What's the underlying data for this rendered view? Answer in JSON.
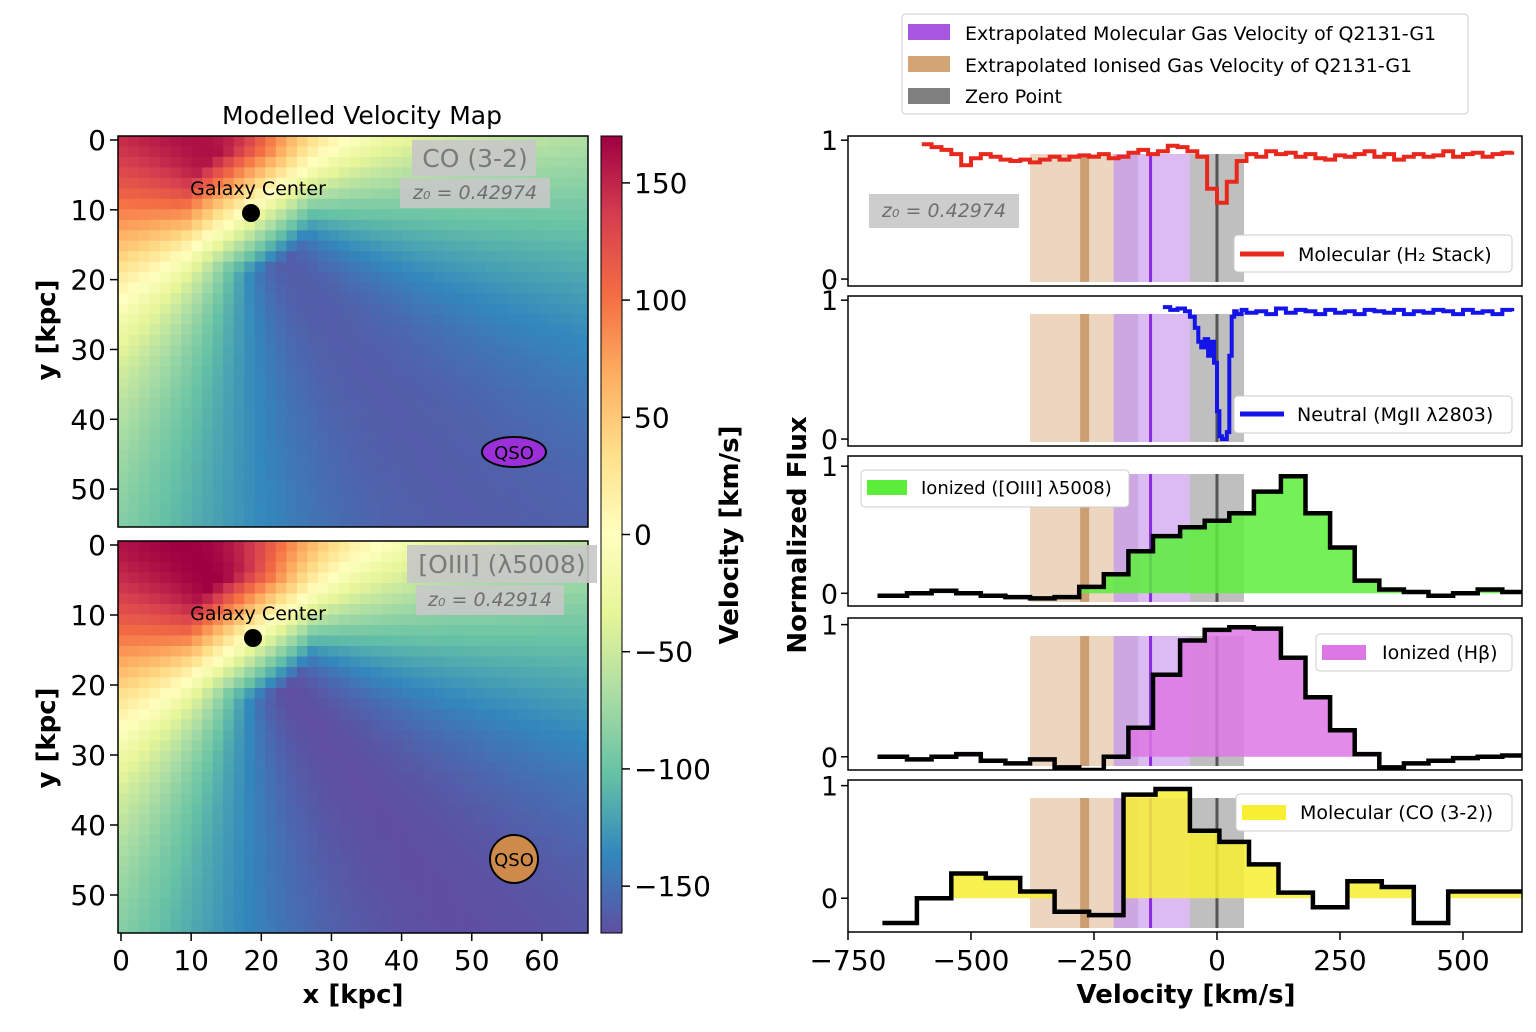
{
  "figure": {
    "left_title": "Modelled Velocity Map",
    "colorbar_label": "Velocity [km/s]",
    "colorbar_ticks": [
      "150",
      "100",
      "50",
      "0",
      "−50",
      "−100",
      "−150"
    ],
    "colorbar_values": [
      150,
      100,
      50,
      0,
      -50,
      -100,
      -150
    ],
    "colorbar_range": [
      -170,
      170
    ],
    "colormap": [
      "#5e4fa2",
      "#3288bd",
      "#66c2a5",
      "#abdda4",
      "#e6f598",
      "#ffffbf",
      "#fee08b",
      "#fdae61",
      "#f46d43",
      "#d53e4f",
      "#9e0142"
    ],
    "map_xlabel": "x [kpc]",
    "map_ylabel": "y [kpc]",
    "map_xticks": [
      "0",
      "10",
      "20",
      "30",
      "40",
      "50",
      "60"
    ],
    "map_yticks": [
      "0",
      "10",
      "20",
      "30",
      "40",
      "50"
    ],
    "map_xrange": [
      0,
      67
    ],
    "map_yrange": [
      0,
      56
    ],
    "right_xlabel": "Velocity [km/s]",
    "right_ylabel": "Normalized Flux",
    "right_xticks": [
      "−750",
      "−500",
      "−250",
      "0",
      "250",
      "500"
    ],
    "right_ytick_one": "1",
    "right_ytick_zero": "0"
  },
  "maps": [
    {
      "label": "CO (3-2)",
      "z0": "z₀ = 0.42974",
      "center_label": "Galaxy Center",
      "qso_label": "QSO",
      "qso_color": "#9b30d9"
    },
    {
      "label": "[OIII] (λ5008)",
      "z0": "z₀ = 0.42914",
      "center_label": "Galaxy Center",
      "qso_label": "QSO",
      "qso_color": "#cd8a4a"
    }
  ],
  "legend": {
    "items": [
      {
        "label": "Extrapolated Molecular Gas Velocity of Q2131-G1",
        "color": "#a855e0"
      },
      {
        "label": "Extrapolated Ionised Gas Velocity of Q2131-G1",
        "color": "#d4a574"
      },
      {
        "label": "Zero Point",
        "color": "#808080"
      }
    ]
  },
  "spectra": [
    {
      "label": "Molecular (H₂ Stack)",
      "line_color": "#e8281c",
      "fill_color": "",
      "z0": "z₀ = 0.42974"
    },
    {
      "label": "Neutral (MgII λ2803)",
      "line_color": "#1414e8",
      "fill_color": ""
    },
    {
      "label": "Ionized ([OIII] λ5008)",
      "line_color": "#000000",
      "fill_color": "#5aee3a"
    },
    {
      "label": "Ionized (Hβ)",
      "line_color": "#000000",
      "fill_color": "#dd77e4"
    },
    {
      "label": "Molecular (CO (3-2))",
      "line_color": "#000000",
      "fill_color": "#f7f032"
    }
  ],
  "chart_data": [
    {
      "type": "heatmap",
      "title": "Modelled Velocity Map",
      "panel": "CO (3-2)",
      "xlabel": "x [kpc]",
      "ylabel": "y [kpc]",
      "xlim": [
        0,
        67
      ],
      "ylim": [
        56,
        0
      ],
      "galaxy_center": [
        18.5,
        10.5
      ],
      "qso_position": [
        56,
        45
      ],
      "velocity_range": [
        -170,
        170
      ]
    },
    {
      "type": "heatmap",
      "panel": "[OIII] (λ5008)",
      "xlabel": "x [kpc]",
      "ylabel": "y [kpc]",
      "xlim": [
        0,
        67
      ],
      "ylim": [
        56,
        0
      ],
      "galaxy_center": [
        19,
        13.5
      ],
      "qso_position": [
        56,
        45
      ],
      "velocity_range": [
        -170,
        170
      ]
    },
    {
      "type": "line",
      "xlabel": "Velocity [km/s]",
      "ylabel": "Normalized Flux",
      "xlim": [
        -750,
        620
      ],
      "shaded_regions": {
        "ionised_gas": [
          -380,
          -210
        ],
        "ionised_line": -270,
        "molecular_gas": [
          -210,
          -55
        ],
        "molecular_line": -135,
        "zero_point_band": [
          -55,
          55
        ],
        "zero_line": 0
      },
      "series": [
        {
          "name": "Molecular (H₂ Stack)",
          "ylim": [
            -0.05,
            1.03
          ],
          "x": [
            -600,
            -580,
            -560,
            -540,
            -520,
            -500,
            -480,
            -460,
            -440,
            -420,
            -400,
            -380,
            -360,
            -340,
            -320,
            -300,
            -280,
            -260,
            -240,
            -220,
            -200,
            -180,
            -160,
            -140,
            -120,
            -100,
            -80,
            -60,
            -40,
            -20,
            0,
            20,
            40,
            60,
            80,
            100,
            120,
            140,
            160,
            180,
            200,
            220,
            240,
            260,
            280,
            300,
            320,
            340,
            360,
            380,
            400,
            420,
            440,
            460,
            480,
            500,
            520,
            540,
            560,
            580,
            600
          ],
          "y": [
            0.97,
            0.95,
            0.93,
            0.9,
            0.82,
            0.87,
            0.9,
            0.88,
            0.86,
            0.85,
            0.86,
            0.84,
            0.86,
            0.88,
            0.86,
            0.88,
            0.89,
            0.88,
            0.9,
            0.87,
            0.88,
            0.91,
            0.93,
            0.9,
            0.92,
            0.96,
            0.95,
            0.92,
            0.88,
            0.65,
            0.55,
            0.7,
            0.85,
            0.9,
            0.88,
            0.92,
            0.9,
            0.91,
            0.88,
            0.9,
            0.87,
            0.86,
            0.89,
            0.88,
            0.9,
            0.92,
            0.88,
            0.9,
            0.86,
            0.88,
            0.9,
            0.88,
            0.89,
            0.92,
            0.88,
            0.9,
            0.91,
            0.88,
            0.9,
            0.91,
            0.92
          ]
        },
        {
          "name": "Neutral (MgII λ2803)",
          "ylim": [
            -0.05,
            1.03
          ],
          "x": [
            -110,
            -95,
            -80,
            -65,
            -55,
            -45,
            -38,
            -32,
            -25,
            -18,
            -12,
            -6,
            0,
            5,
            10,
            15,
            20,
            25,
            30,
            35,
            40,
            50,
            60,
            80,
            100,
            120,
            140,
            160,
            180,
            200,
            220,
            240,
            260,
            280,
            300,
            320,
            340,
            360,
            380,
            400,
            420,
            440,
            460,
            480,
            500,
            520,
            540,
            560,
            580,
            600
          ],
          "y": [
            0.95,
            0.93,
            0.94,
            0.92,
            0.88,
            0.8,
            0.7,
            0.66,
            0.72,
            0.6,
            0.7,
            0.55,
            0.2,
            0.02,
            0.0,
            0.0,
            0.05,
            0.6,
            0.88,
            0.92,
            0.9,
            0.93,
            0.91,
            0.92,
            0.9,
            0.94,
            0.91,
            0.93,
            0.92,
            0.9,
            0.93,
            0.91,
            0.92,
            0.9,
            0.93,
            0.92,
            0.91,
            0.93,
            0.9,
            0.92,
            0.91,
            0.93,
            0.92,
            0.9,
            0.93,
            0.91,
            0.92,
            0.9,
            0.93,
            0.92
          ]
        },
        {
          "name": "Ionized ([OIII] λ5008)",
          "ylim": [
            -0.1,
            1.08
          ],
          "steps": true,
          "x": [
            -690,
            -630,
            -580,
            -530,
            -480,
            -430,
            -380,
            -330,
            -280,
            -230,
            -180,
            -130,
            -75,
            -25,
            25,
            75,
            130,
            180,
            230,
            280,
            330,
            380,
            430,
            480,
            530,
            580
          ],
          "y": [
            -0.02,
            0.0,
            0.02,
            0.0,
            -0.02,
            -0.03,
            -0.04,
            -0.03,
            0.05,
            0.15,
            0.33,
            0.45,
            0.52,
            0.57,
            0.63,
            0.8,
            0.92,
            0.63,
            0.36,
            0.1,
            0.03,
            0.01,
            -0.02,
            0.0,
            0.03,
            0.01
          ]
        },
        {
          "name": "Ionized (Hβ)",
          "ylim": [
            -0.1,
            1.05
          ],
          "steps": true,
          "x": [
            -690,
            -630,
            -580,
            -530,
            -480,
            -430,
            -380,
            -330,
            -280,
            -230,
            -180,
            -130,
            -75,
            -25,
            25,
            75,
            130,
            180,
            230,
            280,
            330,
            380,
            430,
            480,
            530,
            580
          ],
          "y": [
            0.0,
            -0.02,
            0.0,
            0.02,
            -0.03,
            -0.05,
            -0.02,
            -0.08,
            -0.1,
            0.0,
            0.22,
            0.62,
            0.88,
            0.96,
            0.98,
            0.97,
            0.75,
            0.45,
            0.2,
            0.02,
            -0.08,
            -0.05,
            -0.03,
            -0.01,
            0.0,
            0.01
          ]
        },
        {
          "name": "Molecular (CO (3-2))",
          "ylim": [
            -0.3,
            1.05
          ],
          "steps": true,
          "x": [
            -680,
            -610,
            -540,
            -470,
            -400,
            -330,
            -260,
            -190,
            -125,
            -55,
            5,
            65,
            125,
            195,
            265,
            335,
            400,
            470,
            540,
            605
          ],
          "y": [
            -0.22,
            0.0,
            0.22,
            0.18,
            0.06,
            -0.12,
            -0.15,
            0.92,
            0.97,
            0.6,
            0.5,
            0.3,
            0.05,
            -0.08,
            0.15,
            0.1,
            -0.22,
            0.06,
            0.06,
            0.06
          ]
        }
      ]
    }
  ]
}
